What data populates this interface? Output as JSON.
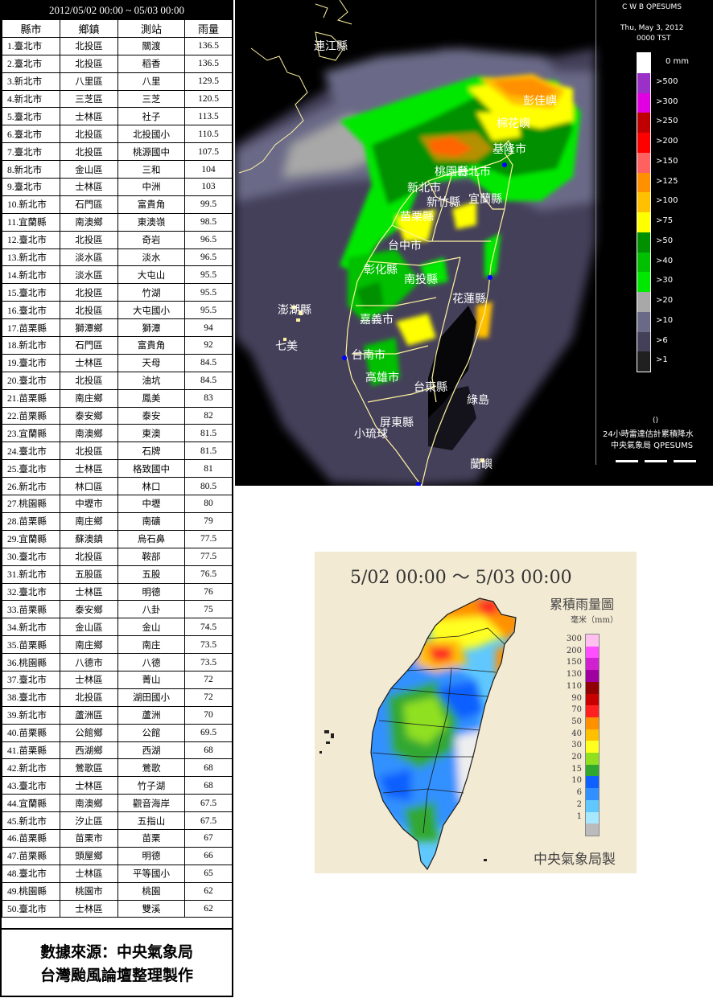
{
  "table": {
    "title": "2012/05/02 00:00 ~ 05/03 00:00",
    "headers": [
      "縣市",
      "鄉鎮",
      "測站",
      "雨量"
    ],
    "rows": [
      [
        "1.臺北市",
        "北投區",
        "關渡",
        "136.5"
      ],
      [
        "2.臺北市",
        "北投區",
        "稻香",
        "136.5"
      ],
      [
        "3.新北市",
        "八里區",
        "八里",
        "129.5"
      ],
      [
        "4.新北市",
        "三芝區",
        "三芝",
        "120.5"
      ],
      [
        "5.臺北市",
        "士林區",
        "社子",
        "113.5"
      ],
      [
        "6.臺北市",
        "北投區",
        "北投國小",
        "110.5"
      ],
      [
        "7.臺北市",
        "北投區",
        "桃源國中",
        "107.5"
      ],
      [
        "8.新北市",
        "金山區",
        "三和",
        "104"
      ],
      [
        "9.臺北市",
        "士林區",
        "中洲",
        "103"
      ],
      [
        "10.新北市",
        "石門區",
        "富貴角",
        "99.5"
      ],
      [
        "11.宜蘭縣",
        "南澳鄉",
        "東澳嶺",
        "98.5"
      ],
      [
        "12.臺北市",
        "北投區",
        "奇岩",
        "96.5"
      ],
      [
        "13.新北市",
        "淡水區",
        "淡水",
        "96.5"
      ],
      [
        "14.新北市",
        "淡水區",
        "大屯山",
        "95.5"
      ],
      [
        "15.臺北市",
        "北投區",
        "竹湖",
        "95.5"
      ],
      [
        "16.臺北市",
        "北投區",
        "大屯國小",
        "95.5"
      ],
      [
        "17.苗栗縣",
        "獅潭鄉",
        "獅潭",
        "94"
      ],
      [
        "18.新北市",
        "石門區",
        "富貴角",
        "92"
      ],
      [
        "19.臺北市",
        "士林區",
        "天母",
        "84.5"
      ],
      [
        "20.臺北市",
        "北投區",
        "油坑",
        "84.5"
      ],
      [
        "21.苗栗縣",
        "南庄鄉",
        "鳳美",
        "83"
      ],
      [
        "22.苗栗縣",
        "泰安鄉",
        "泰安",
        "82"
      ],
      [
        "23.宜蘭縣",
        "南澳鄉",
        "東澳",
        "81.5"
      ],
      [
        "24.臺北市",
        "北投區",
        "石牌",
        "81.5"
      ],
      [
        "25.臺北市",
        "士林區",
        "格致國中",
        "81"
      ],
      [
        "26.新北市",
        "林口區",
        "林口",
        "80.5"
      ],
      [
        "27.桃園縣",
        "中壢市",
        "中壢",
        "80"
      ],
      [
        "28.苗栗縣",
        "南庄鄉",
        "南礦",
        "79"
      ],
      [
        "29.宜蘭縣",
        "蘇澳鎮",
        "烏石鼻",
        "77.5"
      ],
      [
        "30.臺北市",
        "北投區",
        "鞍部",
        "77.5"
      ],
      [
        "31.新北市",
        "五股區",
        "五股",
        "76.5"
      ],
      [
        "32.臺北市",
        "士林區",
        "明德",
        "76"
      ],
      [
        "33.苗栗縣",
        "泰安鄉",
        "八卦",
        "75"
      ],
      [
        "34.新北市",
        "金山區",
        "金山",
        "74.5"
      ],
      [
        "35.苗栗縣",
        "南庄鄉",
        "南庄",
        "73.5"
      ],
      [
        "36.桃園縣",
        "八德市",
        "八德",
        "73.5"
      ],
      [
        "37.臺北市",
        "士林區",
        "菁山",
        "72"
      ],
      [
        "38.臺北市",
        "北投區",
        "湖田國小",
        "72"
      ],
      [
        "39.新北市",
        "蘆洲區",
        "蘆洲",
        "70"
      ],
      [
        "40.苗栗縣",
        "公館鄉",
        "公館",
        "69.5"
      ],
      [
        "41.苗栗縣",
        "西湖鄉",
        "西湖",
        "68"
      ],
      [
        "42.新北市",
        "鶯歌區",
        "鶯歌",
        "68"
      ],
      [
        "43.臺北市",
        "士林區",
        "竹子湖",
        "68"
      ],
      [
        "44.宜蘭縣",
        "南澳鄉",
        "觀音海岸",
        "67.5"
      ],
      [
        "45.新北市",
        "汐止區",
        "五指山",
        "67.5"
      ],
      [
        "46.苗栗縣",
        "苗栗市",
        "苗栗",
        "67"
      ],
      [
        "47.苗栗縣",
        "頭屋鄉",
        "明德",
        "66"
      ],
      [
        "48.臺北市",
        "士林區",
        "平等國小",
        "65"
      ],
      [
        "49.桃園縣",
        "桃園市",
        "桃園",
        "62"
      ],
      [
        "50.臺北市",
        "士林區",
        "雙溪",
        "62"
      ]
    ],
    "footer_line1": "數據來源：中央氣象局",
    "footer_line2": "台灣颱風論壇整理製作"
  },
  "radar": {
    "header1": "C W B QPESUMS",
    "header2": "Thu, May 3, 2012",
    "header3": "0000 TST",
    "scale": [
      {
        "label": "0 mm",
        "color": "#ffffff"
      },
      {
        "label": ">500",
        "color": "#9b30c8"
      },
      {
        "label": ">300",
        "color": "#e000e0"
      },
      {
        "label": ">250",
        "color": "#c00000"
      },
      {
        "label": ">200",
        "color": "#ff0000"
      },
      {
        "label": ">150",
        "color": "#ff6060"
      },
      {
        "label": ">125",
        "color": "#ff9000"
      },
      {
        "label": ">100",
        "color": "#ffc000"
      },
      {
        "label": ">75",
        "color": "#ffff00"
      },
      {
        "label": ">50",
        "color": "#009000"
      },
      {
        "label": ">40",
        "color": "#00c000"
      },
      {
        "label": ">30",
        "color": "#00e800"
      },
      {
        "label": ">20",
        "color": "#a8a8a8"
      },
      {
        "label": ">10",
        "color": "#6a6a88"
      },
      {
        "label": ">6",
        "color": "#45405a"
      },
      {
        "label": ">1",
        "color": "#202020"
      }
    ],
    "footnote1": "()",
    "footnote2": "24小時雷達估計累積降水",
    "footnote3": "中央氣象局 QPESUMS",
    "place_labels": [
      "連江縣",
      "彭佳嶼",
      "基隆市",
      "台北市",
      "新北市",
      "桃園縣",
      "新竹縣",
      "宜蘭縣",
      "苗栗縣",
      "台中市",
      "彰化縣",
      "南投縣",
      "花蓮縣",
      "澎湖縣",
      "嘉義市",
      "七美",
      "台南市",
      "高雄市",
      "台東縣",
      "綠島",
      "屏東縣",
      "小琉球",
      "蘭嶼",
      "棉花嶼"
    ]
  },
  "accum": {
    "title": "5/02 00:00 ～ 5/03 00:00",
    "subtitle": "累積雨量圖",
    "unit": "毫米（mm）",
    "credit": "中央氣象局製",
    "scale": [
      {
        "label": "300",
        "color": "#ffc0f0"
      },
      {
        "label": "200",
        "color": "#ff50ff"
      },
      {
        "label": "150",
        "color": "#d020d0"
      },
      {
        "label": "130",
        "color": "#a000a0"
      },
      {
        "label": "110",
        "color": "#900000"
      },
      {
        "label": "90",
        "color": "#c80000"
      },
      {
        "label": "70",
        "color": "#ff2020"
      },
      {
        "label": "50",
        "color": "#ff9000"
      },
      {
        "label": "40",
        "color": "#ffc000"
      },
      {
        "label": "30",
        "color": "#ffff20"
      },
      {
        "label": "20",
        "color": "#90e020"
      },
      {
        "label": "15",
        "color": "#30a830"
      },
      {
        "label": "10",
        "color": "#1060ff"
      },
      {
        "label": "6",
        "color": "#3090ff"
      },
      {
        "label": "2",
        "color": "#60c8ff"
      },
      {
        "label": "1",
        "color": "#a8e8ff"
      },
      {
        "label": "",
        "color": "#bbbbbb"
      }
    ]
  }
}
